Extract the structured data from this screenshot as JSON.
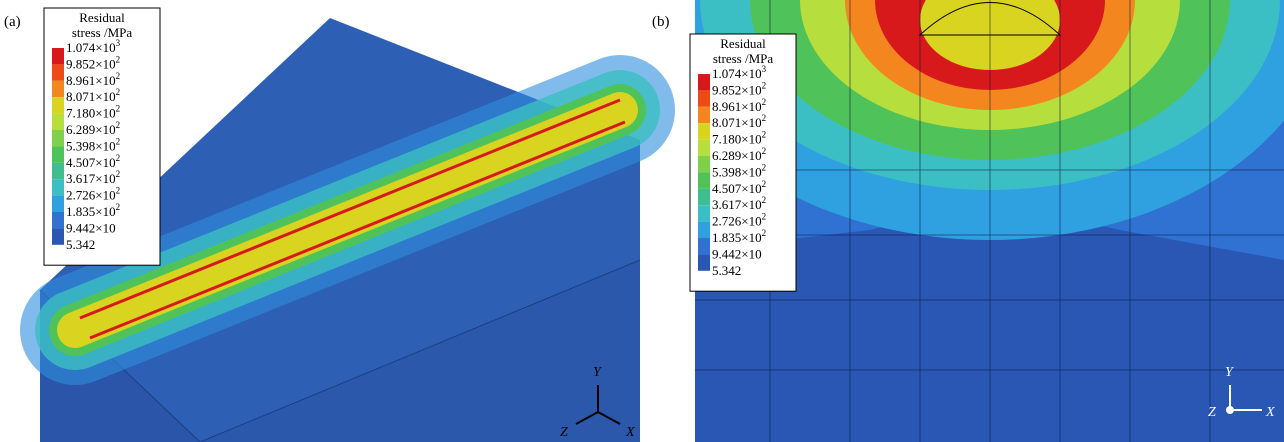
{
  "panels": [
    {
      "label": "(a)"
    },
    {
      "label": "(b)"
    }
  ],
  "legend": {
    "title": [
      "Residual",
      "stress /MPa"
    ],
    "colors": [
      "#d7191c",
      "#ee4a16",
      "#f3861f",
      "#d9d420",
      "#b6de3c",
      "#7fd04a",
      "#4fc35a",
      "#3fbf90",
      "#3cbfc4",
      "#2fa0e0",
      "#2f72d2",
      "#2a57b4"
    ],
    "entries": [
      {
        "mantissa": "1.074×10",
        "exponent": "3"
      },
      {
        "mantissa": "9.852×10",
        "exponent": "2"
      },
      {
        "mantissa": "8.961×10",
        "exponent": "2"
      },
      {
        "mantissa": "8.071×10",
        "exponent": "2"
      },
      {
        "mantissa": "7.180×10",
        "exponent": "2"
      },
      {
        "mantissa": "6.289×10",
        "exponent": "2"
      },
      {
        "mantissa": "5.398×10",
        "exponent": "2"
      },
      {
        "mantissa": "4.507×10",
        "exponent": "2"
      },
      {
        "mantissa": "3.617×10",
        "exponent": "2"
      },
      {
        "mantissa": "2.726×10",
        "exponent": "2"
      },
      {
        "mantissa": "1.835×10",
        "exponent": "2"
      },
      {
        "mantissa": "9.442×10"
      },
      {
        "mantissa": "5.342"
      }
    ]
  },
  "axes": {
    "x": "X",
    "y": "Y",
    "z": "Z"
  }
}
